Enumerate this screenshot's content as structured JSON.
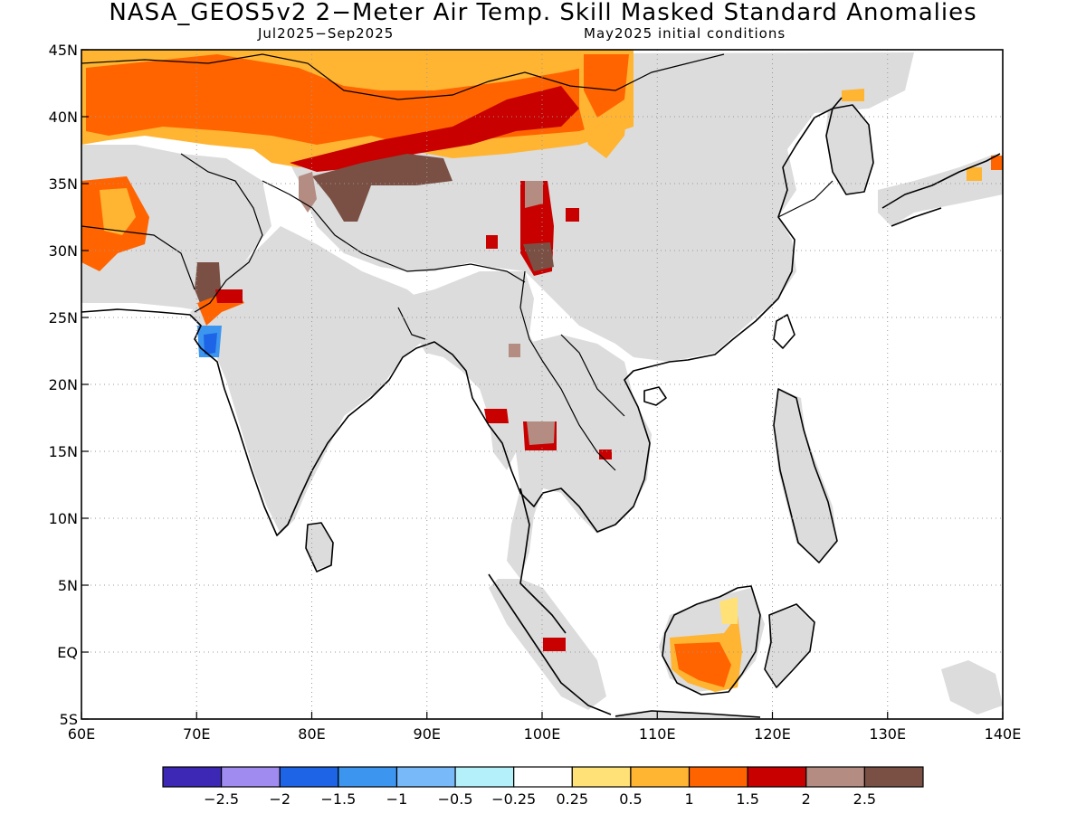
{
  "header": {
    "title": "NASA_GEOS5v2 2−Meter Air Temp. Skill Masked Standard Anomalies",
    "valid_period": "Jul2025−Sep2025",
    "init_conditions": "May2025 initial conditions"
  },
  "map": {
    "lon_range": [
      60,
      140
    ],
    "lat_range": [
      -5,
      45
    ],
    "lon_ticks": [
      {
        "value": 60,
        "label": "60E"
      },
      {
        "value": 70,
        "label": "70E"
      },
      {
        "value": 80,
        "label": "80E"
      },
      {
        "value": 90,
        "label": "90E"
      },
      {
        "value": 100,
        "label": "100E"
      },
      {
        "value": 110,
        "label": "110E"
      },
      {
        "value": 120,
        "label": "120E"
      },
      {
        "value": 130,
        "label": "130E"
      },
      {
        "value": 140,
        "label": "140E"
      }
    ],
    "lat_ticks": [
      {
        "value": 45,
        "label": "45N"
      },
      {
        "value": 40,
        "label": "40N"
      },
      {
        "value": 35,
        "label": "35N"
      },
      {
        "value": 30,
        "label": "30N"
      },
      {
        "value": 25,
        "label": "25N"
      },
      {
        "value": 20,
        "label": "20N"
      },
      {
        "value": 15,
        "label": "15N"
      },
      {
        "value": 10,
        "label": "10N"
      },
      {
        "value": 5,
        "label": "5N"
      },
      {
        "value": 0,
        "label": "EQ"
      },
      {
        "value": -5,
        "label": "5S"
      }
    ],
    "gridlines": "dotted"
  },
  "colorbar": {
    "colors": [
      "#3c28b4",
      "#a08cf0",
      "#1e64e6",
      "#3c96f0",
      "#78b9fa",
      "#b4f0fa",
      "#ffffff",
      "#ffe178",
      "#ffb432",
      "#ff6400",
      "#c80000",
      "#b48c82",
      "#7a5044"
    ],
    "labels": [
      "−2.5",
      "−2",
      "−1.5",
      "−1",
      "−0.5",
      "−0.25",
      "0.25",
      "0.5",
      "1",
      "1.5",
      "2",
      "2.5"
    ]
  },
  "mask_color": "#dcdcdc"
}
